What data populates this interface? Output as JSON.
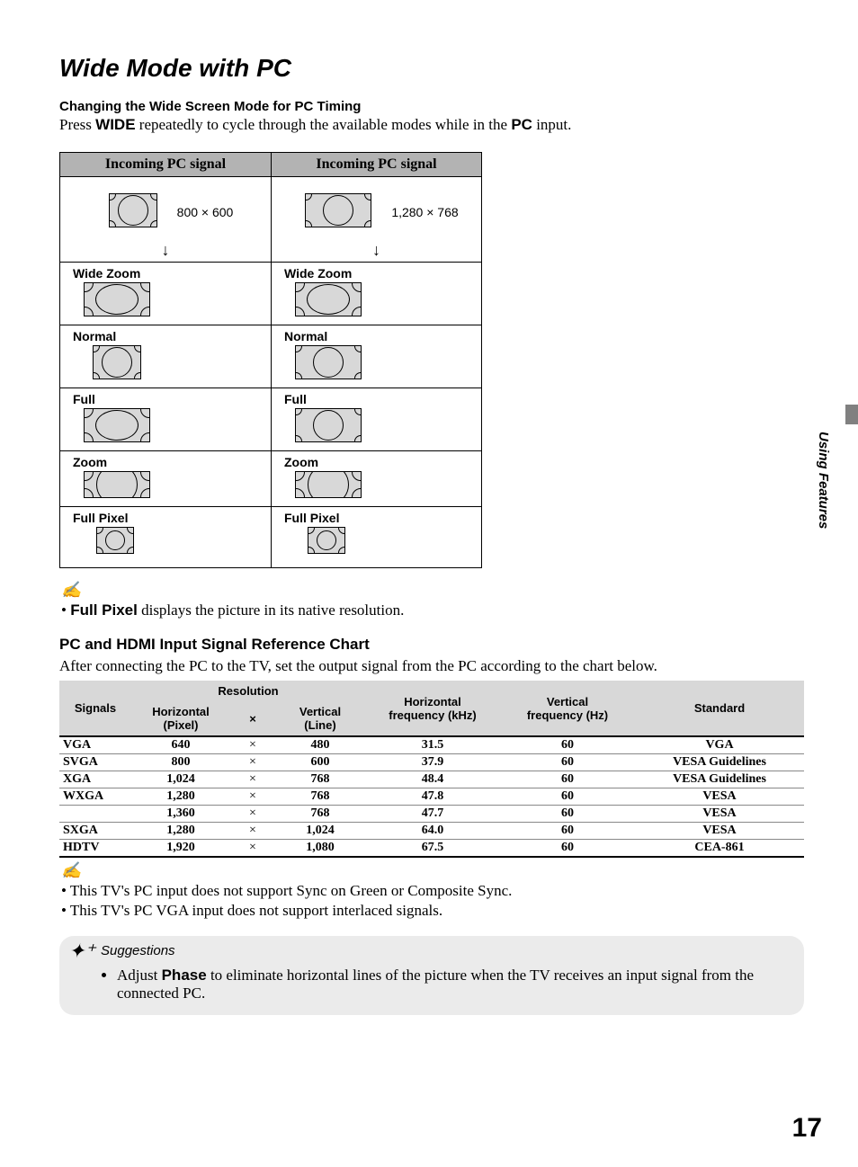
{
  "title": "Wide Mode with PC",
  "section_change": "Changing the Wide Screen Mode for PC Timing",
  "intro_1": "Press ",
  "intro_wide": "WIDE",
  "intro_2": " repeatedly to cycle through the available modes while in the ",
  "intro_pc": "PC",
  "intro_3": " input.",
  "sig_header": "Incoming PC signal",
  "res_left": "800 × 600",
  "res_right": "1,280 × 768",
  "modes": {
    "wide_zoom": "Wide Zoom",
    "normal": "Normal",
    "full": "Full",
    "zoom": "Zoom",
    "full_pixel": "Full Pixel"
  },
  "note_full_pixel_strong": "Full Pixel",
  "note_full_pixel_rest": " displays the picture in its native resolution.",
  "section_ref": "PC and HDMI Input Signal Reference Chart",
  "ref_intro": "After connecting the PC to the TV, set the output signal from the PC according to the chart below.",
  "headers": {
    "signals": "Signals",
    "resolution": "Resolution",
    "hpixel": "Horizontal\n(Pixel)",
    "mult": "×",
    "vline": "Vertical\n(Line)",
    "hfreq": "Horizontal\nfrequency (kHz)",
    "vfreq": "Vertical\nfrequency (Hz)",
    "standard": "Standard"
  },
  "rows": [
    {
      "sig": "VGA",
      "h": "640",
      "v": "480",
      "hf": "31.5",
      "vf": "60",
      "std": "VGA"
    },
    {
      "sig": "SVGA",
      "h": "800",
      "v": "600",
      "hf": "37.9",
      "vf": "60",
      "std": "VESA Guidelines"
    },
    {
      "sig": "XGA",
      "h": "1,024",
      "v": "768",
      "hf": "48.4",
      "vf": "60",
      "std": "VESA Guidelines"
    },
    {
      "sig": "WXGA",
      "h": "1,280",
      "v": "768",
      "hf": "47.8",
      "vf": "60",
      "std": "VESA"
    },
    {
      "sig": "",
      "h": "1,360",
      "v": "768",
      "hf": "47.7",
      "vf": "60",
      "std": "VESA"
    },
    {
      "sig": "SXGA",
      "h": "1,280",
      "v": "1,024",
      "hf": "64.0",
      "vf": "60",
      "std": "VESA"
    },
    {
      "sig": "HDTV",
      "h": "1,920",
      "v": "1,080",
      "hf": "67.5",
      "vf": "60",
      "std": "CEA-861"
    }
  ],
  "mult_sym": "×",
  "note_sync": "This TV's PC input does not support Sync on Green or Composite Sync.",
  "note_interlaced": "This TV's PC VGA input does not support interlaced signals.",
  "suggestions_label": "Suggestions",
  "sugg_phase_1": "Adjust ",
  "sugg_phase_bold": "Phase",
  "sugg_phase_2": " to eliminate horizontal lines of the picture when the TV receives an input signal from the connected PC.",
  "side_tab": "Using Features",
  "page_number": "17",
  "colors": {
    "header_bg": "#b3b3b3",
    "table_head_bg": "#d8d8d8",
    "sugg_bg": "#ebebeb",
    "side_block": "#808080"
  }
}
